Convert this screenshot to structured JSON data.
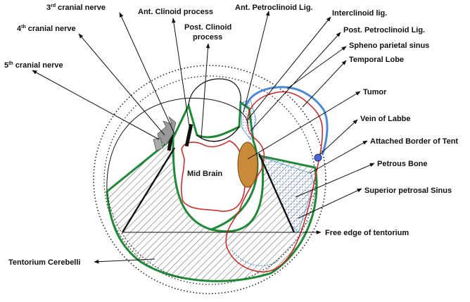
{
  "labels": {
    "cn3_num": "3",
    "cn3_sup": "rd",
    "cn3_text": "cranial nerve",
    "cn4_num": "4",
    "cn4_sup": "th",
    "cn4_text": "cranial nerve",
    "cn5_num": "5",
    "cn5_sup": "th",
    "cn5_text": "cranial nerve",
    "ant_clinoid": "Ant. Clinoid process",
    "post_clinoid_1": "Post. Clinoid",
    "post_clinoid_2": "process",
    "ant_petroclinoid": "Ant. Petroclinoid Lig.",
    "interclinoid": "Interclinoid lig.",
    "post_petroclinoid": "Post. Petroclinoid Lig.",
    "spheno_parietal": "Spheno parietal sinus",
    "temporal_lobe": "Temporal Lobe",
    "tumor": "Tumor",
    "vein_of_labbe": "Vein of Labbe",
    "attached_border": "Attached Border of Tent",
    "petrous_bone": "Petrous Bone",
    "superior_petrosal": "Superior petrosal Sinus",
    "free_edge": "Free edge of tentorium",
    "tentorium_cerebelli": "Tentorium Cerebelli",
    "mid_brain": "Mid Brain"
  },
  "colors": {
    "tentorium_outline": "#1e8a36",
    "temporal_lobe_outline": "#d42020",
    "sinus_blue": "#4a8ad8",
    "tumor_fill": "#c98a3a",
    "hatch": "#555555",
    "skull_dotted": "#222222"
  }
}
